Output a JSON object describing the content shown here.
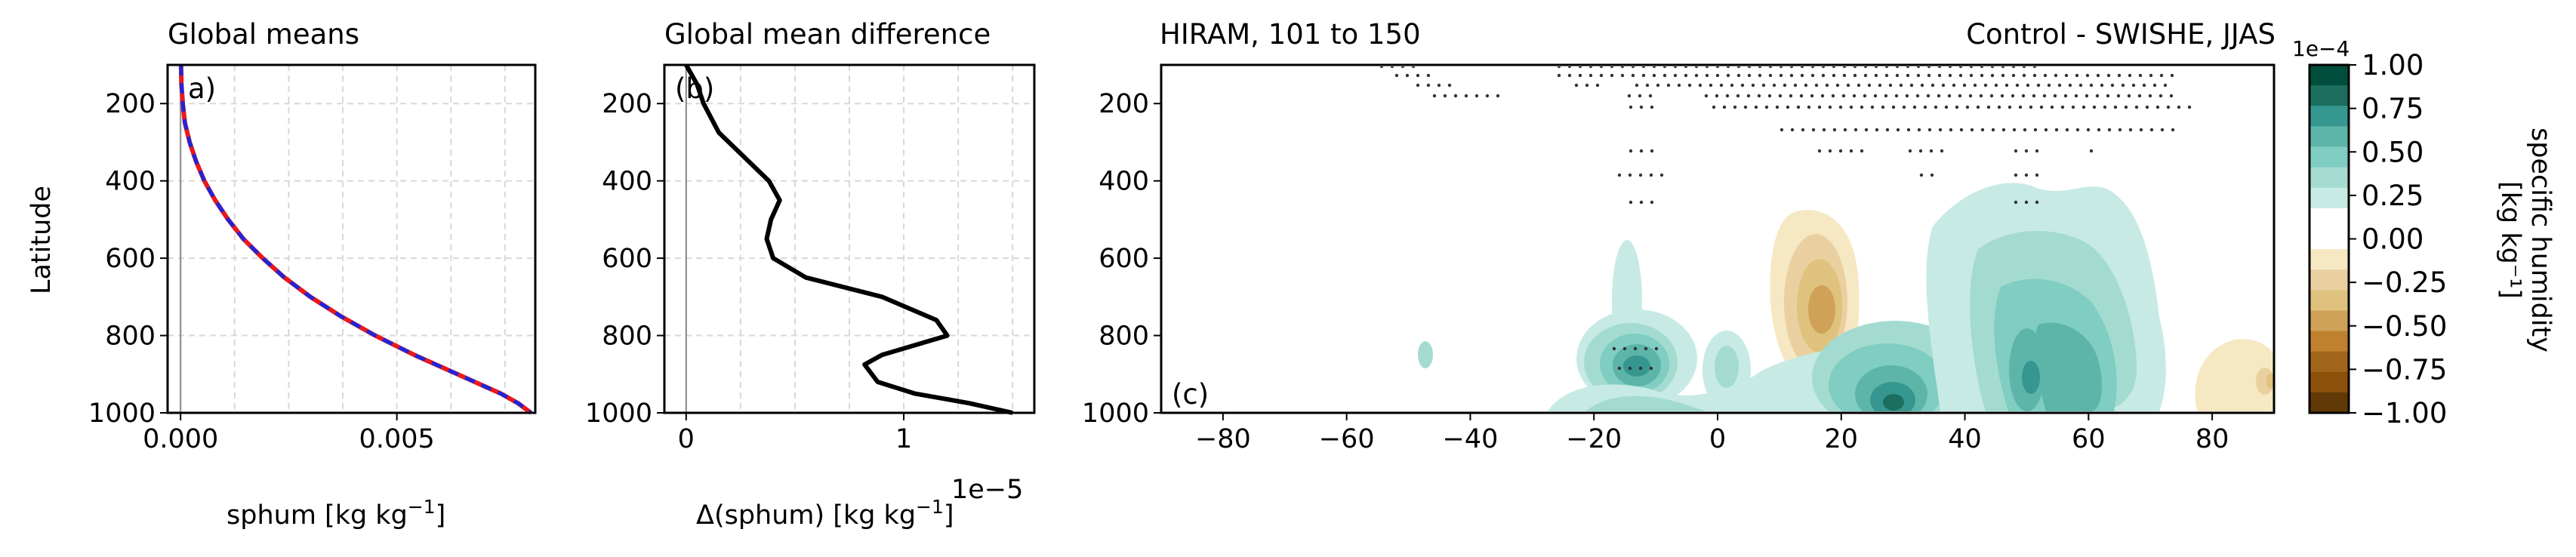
{
  "figure": {
    "panel_a": {
      "title": "Global means",
      "label": "a)"
    },
    "panel_b": {
      "title": "Global mean difference",
      "label": "(b)",
      "offset_text": "1e−5"
    },
    "panel_c": {
      "title_left": "HIRAM, 101 to 150",
      "title_right": "Control - SWISHE, JJAS",
      "label": "(c)"
    },
    "colorbar": {
      "label_line1": "specific humidity",
      "label_line2": "[kg kg⁻¹]",
      "offset_text": "1e−4"
    }
  },
  "chart_data": [
    {
      "type": "line",
      "title": "Global means",
      "xlabel": "sphum [kg kg⁻¹]",
      "ylabel": "Latitude",
      "xlim": [
        -0.0003,
        0.0082
      ],
      "ylim": [
        1000,
        100
      ],
      "y_inverted": true,
      "grid": true,
      "xticks": [
        0.0,
        0.005
      ],
      "xtick_labels": [
        "0.000",
        "0.005"
      ],
      "yticks": [
        200,
        400,
        600,
        800,
        1000
      ],
      "ytick_labels": [
        "200",
        "400",
        "600",
        "800",
        "1000"
      ],
      "vline_x": 0,
      "series": [
        {
          "color": "#e8191d",
          "style": "solid",
          "y": [
            100,
            150,
            200,
            250,
            300,
            350,
            400,
            450,
            500,
            550,
            600,
            650,
            700,
            750,
            800,
            850,
            900,
            950,
            975,
            1000
          ],
          "values": [
            1e-05,
            2e-05,
            5e-05,
            0.0001,
            0.00021,
            0.00036,
            0.00055,
            0.0008,
            0.0011,
            0.00145,
            0.0019,
            0.0024,
            0.003,
            0.0037,
            0.0045,
            0.0054,
            0.0064,
            0.0074,
            0.0078,
            0.0081
          ]
        },
        {
          "color": "#1f26d8",
          "style": "dashed",
          "y": [
            100,
            150,
            200,
            250,
            300,
            350,
            400,
            450,
            500,
            550,
            600,
            650,
            700,
            750,
            800,
            850,
            900,
            950,
            975,
            1000
          ],
          "values": [
            1e-05,
            2e-05,
            5e-05,
            0.0001,
            0.00021,
            0.00036,
            0.00055,
            0.0008,
            0.0011,
            0.00145,
            0.0019,
            0.0024,
            0.003,
            0.0037,
            0.0045,
            0.0054,
            0.0064,
            0.0074,
            0.0078,
            0.0081
          ]
        }
      ]
    },
    {
      "type": "line",
      "title": "Global mean difference",
      "xlabel": "Δ(sphum) [kg kg⁻¹]",
      "xlim": [
        -0.1,
        1.6
      ],
      "x_scale_note": "1e−5",
      "ylim": [
        1000,
        100
      ],
      "y_inverted": true,
      "grid": true,
      "xticks": [
        0,
        1
      ],
      "xtick_labels": [
        "0",
        "1"
      ],
      "yticks": [
        200,
        400,
        600,
        800,
        1000
      ],
      "ytick_labels": [
        "200",
        "400",
        "600",
        "800",
        "1000"
      ],
      "vline_x": 0,
      "series": [
        {
          "color": "#000000",
          "y": [
            100,
            150,
            200,
            275,
            400,
            450,
            500,
            550,
            600,
            650,
            700,
            760,
            800,
            850,
            875,
            920,
            950,
            975,
            1000
          ],
          "values": [
            0.0,
            0.05,
            0.08,
            0.15,
            0.38,
            0.43,
            0.39,
            0.37,
            0.4,
            0.55,
            0.9,
            1.15,
            1.2,
            0.9,
            0.82,
            0.88,
            1.05,
            1.3,
            1.5
          ]
        }
      ]
    },
    {
      "type": "contour",
      "title_left": "HIRAM, 101 to 150",
      "title_right": "Control - SWISHE, JJAS",
      "xlim": [
        -90,
        90
      ],
      "ylim": [
        1000,
        100
      ],
      "y_inverted": true,
      "xticks": [
        -80,
        -60,
        -40,
        -20,
        0,
        20,
        40,
        60,
        80
      ],
      "xtick_labels": [
        "−80",
        "−60",
        "−40",
        "−20",
        "0",
        "20",
        "40",
        "60",
        "80"
      ],
      "yticks": [
        200,
        400,
        600,
        800,
        1000
      ],
      "ytick_labels": [
        "200",
        "400",
        "600",
        "800",
        "1000"
      ],
      "colorbar": {
        "scale": "1e−4",
        "ticks": [
          1.0,
          0.75,
          0.5,
          0.25,
          0.0,
          -0.25,
          -0.5,
          -0.75,
          -1.0
        ],
        "tick_labels": [
          "1.00",
          "0.75",
          "0.50",
          "0.25",
          "0.00",
          "−0.25",
          "−0.50",
          "−0.75",
          "−1.00"
        ],
        "levels_top_to_bottom": [
          "#004d3c",
          "#1c6f5f",
          "#35978f",
          "#5db5a9",
          "#80cdc1",
          "#a4dbd1",
          "#c7eae5",
          "#ffffff",
          "#ffffff",
          "#f6e8c3",
          "#ead0a0",
          "#dfc27d",
          "#cfa257",
          "#bf812d",
          "#a0651b",
          "#8c510a",
          "#613906"
        ]
      },
      "features": [
        {
          "lon": -13,
          "pres": 770,
          "sign": "positive",
          "peak": 0.8
        },
        {
          "lon": 0,
          "pres": 780,
          "sign": "positive",
          "peak": 0.3
        },
        {
          "lon": 14,
          "pres": 690,
          "sign": "negative",
          "peak": -0.5
        },
        {
          "lon": 28,
          "pres": 930,
          "sign": "positive",
          "peak": 0.9
        },
        {
          "lon": 50,
          "pres": 820,
          "sign": "positive",
          "peak": 0.7
        },
        {
          "lon": 58,
          "pres": 950,
          "sign": "positive",
          "peak": 0.4
        },
        {
          "lon": 88,
          "pres": 830,
          "sign": "negative",
          "peak": -0.3
        },
        {
          "lon": -48,
          "pres": 800,
          "sign": "positive",
          "peak": 0.1
        }
      ]
    }
  ]
}
